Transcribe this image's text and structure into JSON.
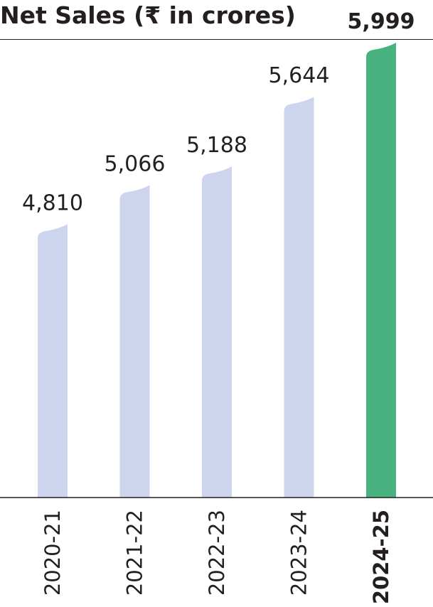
{
  "chart_data": {
    "type": "bar",
    "title": "Net Sales (₹ in crores)",
    "xlabel": "",
    "ylabel": "",
    "categories": [
      "2020-21",
      "2021-22",
      "2022-23",
      "2023-24",
      "2024-25"
    ],
    "values": [
      4810,
      5066,
      5188,
      5644,
      5999
    ],
    "value_labels": [
      "4,810",
      "5,066",
      "5,188",
      "5,644",
      "5,999"
    ],
    "highlight_index": 4,
    "grid": false,
    "legend": "none",
    "colors": {
      "bar": "#cdd5ee",
      "highlight": "#49b380",
      "text": "#231f20",
      "axis": "#231f20"
    }
  }
}
